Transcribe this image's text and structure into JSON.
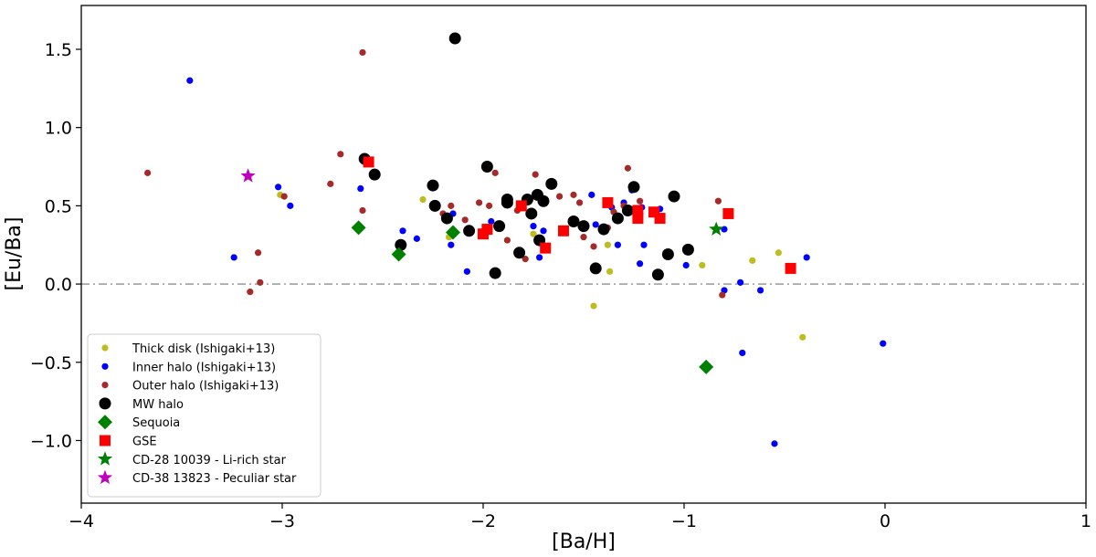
{
  "chart_data": {
    "type": "scatter",
    "title": "",
    "xlabel": "[Ba/H]",
    "ylabel": "[Eu/Ba]",
    "xlim": [
      -4,
      1
    ],
    "ylim": [
      -1.4,
      1.78
    ],
    "xticks": [
      -4,
      -3,
      -2,
      -1,
      0,
      1
    ],
    "xtick_labels": [
      "−4",
      "−3",
      "−2",
      "−1",
      "0",
      "1"
    ],
    "yticks": [
      -1.0,
      -0.5,
      0.0,
      0.5,
      1.0,
      1.5
    ],
    "ytick_labels": [
      "−1.0",
      "−0.5",
      "0.0",
      "0.5",
      "1.0",
      "1.5"
    ],
    "grid": false,
    "reference_line": {
      "y": 0.0,
      "style": "dash-dot",
      "color": "#777777"
    },
    "legend_position": "lower-left",
    "series": [
      {
        "name": "Thick disk (Ishigaki+13)",
        "marker": "circle",
        "color": "#bdbd1f",
        "size": "small",
        "points": [
          [
            -3.01,
            0.57
          ],
          [
            -2.3,
            0.54
          ],
          [
            -1.75,
            0.32
          ],
          [
            -1.45,
            -0.14
          ],
          [
            -1.38,
            0.25
          ],
          [
            -1.37,
            0.08
          ],
          [
            -0.91,
            0.12
          ],
          [
            -0.66,
            0.15
          ],
          [
            -0.53,
            0.2
          ],
          [
            -0.41,
            -0.34
          ],
          [
            -2.17,
            0.3
          ]
        ]
      },
      {
        "name": "Inner halo (Ishigaki+13)",
        "marker": "circle",
        "color": "#0000ff",
        "size": "small",
        "points": [
          [
            -3.46,
            1.3
          ],
          [
            -3.02,
            0.62
          ],
          [
            -2.96,
            0.5
          ],
          [
            -3.24,
            0.17
          ],
          [
            -2.61,
            0.61
          ],
          [
            -2.4,
            0.34
          ],
          [
            -2.33,
            0.29
          ],
          [
            -2.15,
            0.45
          ],
          [
            -2.16,
            0.25
          ],
          [
            -2.08,
            0.08
          ],
          [
            -1.96,
            0.4
          ],
          [
            -1.75,
            0.37
          ],
          [
            -1.7,
            0.34
          ],
          [
            -1.72,
            0.17
          ],
          [
            -1.46,
            0.57
          ],
          [
            -1.44,
            0.38
          ],
          [
            -1.33,
            0.25
          ],
          [
            -1.3,
            0.52
          ],
          [
            -1.26,
            0.6
          ],
          [
            -1.2,
            0.25
          ],
          [
            -1.22,
            0.13
          ],
          [
            -1.21,
            0.49
          ],
          [
            -1.36,
            0.49
          ],
          [
            -1.12,
            0.48
          ],
          [
            -0.99,
            0.12
          ],
          [
            -0.8,
            -0.04
          ],
          [
            -0.8,
            0.35
          ],
          [
            -0.72,
            0.01
          ],
          [
            -0.71,
            -0.44
          ],
          [
            -0.62,
            -0.04
          ],
          [
            -0.55,
            -1.02
          ],
          [
            -0.39,
            0.17
          ],
          [
            -0.01,
            -0.38
          ]
        ]
      },
      {
        "name": "Outer halo (Ishigaki+13)",
        "marker": "circle",
        "color": "#a52a2a",
        "size": "small",
        "points": [
          [
            -3.67,
            0.71
          ],
          [
            -2.6,
            1.48
          ],
          [
            -2.71,
            0.83
          ],
          [
            -2.76,
            0.64
          ],
          [
            -2.6,
            0.47
          ],
          [
            -2.59,
            0.78
          ],
          [
            -2.99,
            0.56
          ],
          [
            -3.12,
            0.2
          ],
          [
            -3.11,
            0.01
          ],
          [
            -3.16,
            -0.05
          ],
          [
            -2.2,
            0.45
          ],
          [
            -2.16,
            0.5
          ],
          [
            -2.09,
            0.41
          ],
          [
            -2.02,
            0.52
          ],
          [
            -1.97,
            0.5
          ],
          [
            -1.94,
            0.71
          ],
          [
            -1.83,
            0.47
          ],
          [
            -1.88,
            0.28
          ],
          [
            -1.79,
            0.16
          ],
          [
            -1.74,
            0.7
          ],
          [
            -1.62,
            0.56
          ],
          [
            -1.55,
            0.57
          ],
          [
            -1.52,
            0.52
          ],
          [
            -1.5,
            0.3
          ],
          [
            -1.45,
            0.24
          ],
          [
            -1.38,
            0.36
          ],
          [
            -1.35,
            0.46
          ],
          [
            -1.3,
            0.5
          ],
          [
            -1.28,
            0.74
          ],
          [
            -1.22,
            0.53
          ],
          [
            -0.83,
            0.53
          ],
          [
            -0.81,
            -0.07
          ]
        ]
      },
      {
        "name": "MW halo",
        "marker": "circle",
        "color": "#000000",
        "size": "large",
        "points": [
          [
            -2.14,
            1.57
          ],
          [
            -2.59,
            0.8
          ],
          [
            -2.54,
            0.7
          ],
          [
            -2.41,
            0.25
          ],
          [
            -2.24,
            0.5
          ],
          [
            -2.25,
            0.63
          ],
          [
            -2.18,
            0.42
          ],
          [
            -2.07,
            0.34
          ],
          [
            -1.98,
            0.75
          ],
          [
            -1.94,
            0.07
          ],
          [
            -1.92,
            0.37
          ],
          [
            -1.88,
            0.54
          ],
          [
            -1.88,
            0.52
          ],
          [
            -1.82,
            0.2
          ],
          [
            -1.78,
            0.54
          ],
          [
            -1.73,
            0.57
          ],
          [
            -1.7,
            0.53
          ],
          [
            -1.66,
            0.64
          ],
          [
            -1.55,
            0.4
          ],
          [
            -1.5,
            0.37
          ],
          [
            -1.44,
            0.1
          ],
          [
            -1.4,
            0.35
          ],
          [
            -1.33,
            0.42
          ],
          [
            -1.28,
            0.47
          ],
          [
            -1.25,
            0.62
          ],
          [
            -1.13,
            0.06
          ],
          [
            -1.08,
            0.19
          ],
          [
            -1.05,
            0.56
          ],
          [
            -0.98,
            0.22
          ],
          [
            -1.72,
            0.28
          ],
          [
            -1.76,
            0.45
          ]
        ]
      },
      {
        "name": "Sequoia",
        "marker": "diamond",
        "color": "#008000",
        "size": "large",
        "points": [
          [
            -2.62,
            0.36
          ],
          [
            -2.42,
            0.19
          ],
          [
            -2.15,
            0.33
          ],
          [
            -0.89,
            -0.53
          ]
        ]
      },
      {
        "name": "GSE",
        "marker": "square",
        "color": "#ff0000",
        "size": "large",
        "points": [
          [
            -2.57,
            0.78
          ],
          [
            -2.0,
            0.32
          ],
          [
            -1.98,
            0.35
          ],
          [
            -1.81,
            0.5
          ],
          [
            -1.6,
            0.34
          ],
          [
            -1.69,
            0.23
          ],
          [
            -1.38,
            0.52
          ],
          [
            -1.23,
            0.47
          ],
          [
            -1.23,
            0.42
          ],
          [
            -1.15,
            0.46
          ],
          [
            -1.12,
            0.42
          ],
          [
            -0.78,
            0.45
          ],
          [
            -0.47,
            0.1
          ]
        ]
      },
      {
        "name": "CD-28 10039 - Li-rich star",
        "marker": "star",
        "color": "#008000",
        "size": "large",
        "points": [
          [
            -0.84,
            0.35
          ]
        ]
      },
      {
        "name": "CD-38 13823 - Peculiar star",
        "marker": "star",
        "color": "#bf00bf",
        "size": "large",
        "points": [
          [
            -3.17,
            0.69
          ]
        ]
      }
    ]
  }
}
